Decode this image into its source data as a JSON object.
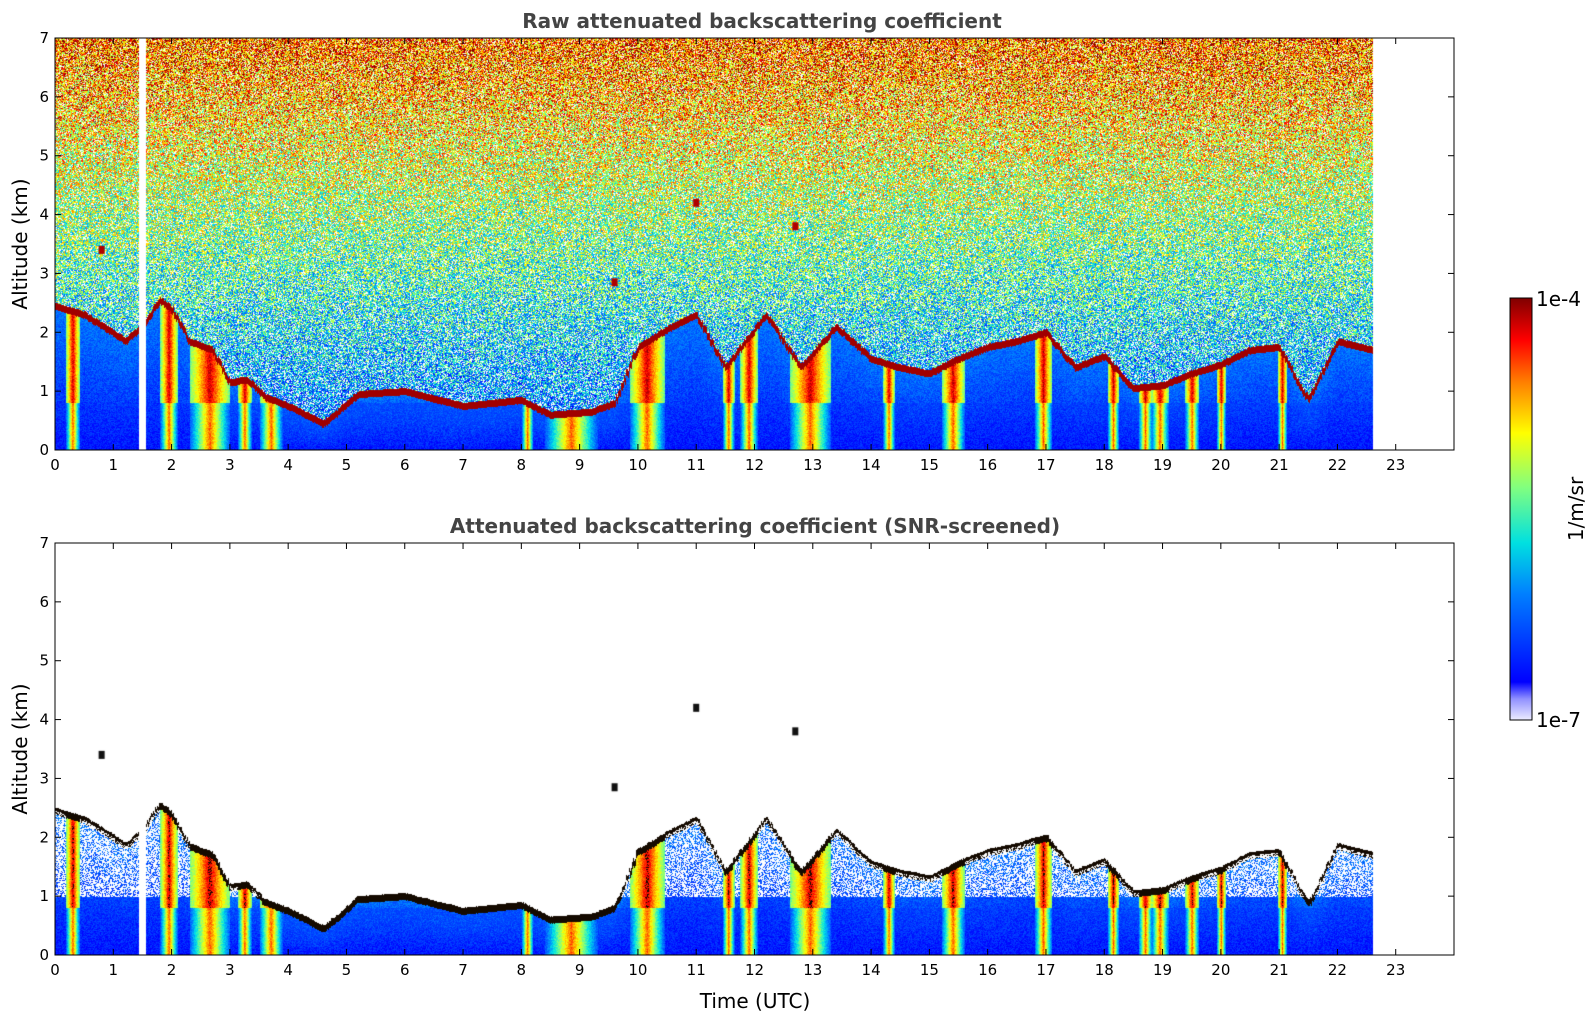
{
  "chart_data": [
    {
      "type": "heatmap",
      "title": "Raw attenuated backscattering coefficient",
      "xlabel": "",
      "ylabel": "Altitude (km)",
      "xlim": [
        0,
        24
      ],
      "ylim": [
        0,
        7
      ],
      "xticks": [
        "0",
        "1",
        "2",
        "3",
        "4",
        "5",
        "6",
        "7",
        "8",
        "9",
        "10",
        "11",
        "12",
        "13",
        "14",
        "15",
        "16",
        "17",
        "18",
        "19",
        "20",
        "21",
        "22",
        "23"
      ],
      "yticks": [
        "0",
        "1",
        "2",
        "3",
        "4",
        "5",
        "6",
        "7"
      ],
      "data_end_time": 22.6,
      "gap_time": 1.5,
      "screened": false
    },
    {
      "type": "heatmap",
      "title": "Attenuated backscattering coefficient (SNR-screened)",
      "xlabel": "Time (UTC)",
      "ylabel": "Altitude (km)",
      "xlim": [
        0,
        24
      ],
      "ylim": [
        0,
        7
      ],
      "xticks": [
        "0",
        "1",
        "2",
        "3",
        "4",
        "5",
        "6",
        "7",
        "8",
        "9",
        "10",
        "11",
        "12",
        "13",
        "14",
        "15",
        "16",
        "17",
        "18",
        "19",
        "20",
        "21",
        "22",
        "23"
      ],
      "yticks": [
        "0",
        "1",
        "2",
        "3",
        "4",
        "5",
        "6",
        "7"
      ],
      "data_end_time": 22.6,
      "gap_time": 1.5,
      "screened": true
    }
  ],
  "colorbar": {
    "label": "1/m/sr",
    "max_label": "1e-4",
    "min_label": "1e-7",
    "scale": "log",
    "range": [
      1e-07,
      0.0001
    ],
    "colormap": "jet"
  },
  "cloud_layer": [
    [
      0.0,
      2.45
    ],
    [
      0.5,
      2.3
    ],
    [
      1.0,
      2.0
    ],
    [
      1.2,
      1.85
    ],
    [
      1.5,
      2.1
    ],
    [
      1.8,
      2.55
    ],
    [
      2.0,
      2.4
    ],
    [
      2.3,
      1.85
    ],
    [
      2.7,
      1.7
    ],
    [
      3.0,
      1.15
    ],
    [
      3.3,
      1.2
    ],
    [
      3.6,
      0.9
    ],
    [
      4.0,
      0.75
    ],
    [
      4.6,
      0.45
    ],
    [
      4.8,
      0.6
    ],
    [
      5.2,
      0.95
    ],
    [
      6.0,
      1.0
    ],
    [
      7.0,
      0.75
    ],
    [
      8.0,
      0.85
    ],
    [
      8.5,
      0.6
    ],
    [
      9.2,
      0.65
    ],
    [
      9.6,
      0.8
    ],
    [
      10.0,
      1.75
    ],
    [
      10.5,
      2.05
    ],
    [
      11.0,
      2.3
    ],
    [
      11.5,
      1.4
    ],
    [
      12.2,
      2.3
    ],
    [
      12.8,
      1.4
    ],
    [
      13.4,
      2.1
    ],
    [
      14.0,
      1.55
    ],
    [
      14.5,
      1.4
    ],
    [
      15.0,
      1.3
    ],
    [
      15.5,
      1.55
    ],
    [
      16.0,
      1.75
    ],
    [
      16.5,
      1.85
    ],
    [
      17.0,
      2.0
    ],
    [
      17.5,
      1.4
    ],
    [
      18.0,
      1.6
    ],
    [
      18.5,
      1.05
    ],
    [
      19.0,
      1.1
    ],
    [
      19.5,
      1.3
    ],
    [
      20.0,
      1.45
    ],
    [
      20.5,
      1.7
    ],
    [
      21.0,
      1.75
    ],
    [
      21.5,
      0.85
    ],
    [
      22.0,
      1.85
    ],
    [
      22.6,
      1.7
    ]
  ],
  "upper_features": [
    [
      0.8,
      3.4
    ],
    [
      11.0,
      4.2
    ],
    [
      12.7,
      3.8
    ],
    [
      9.6,
      2.85
    ]
  ],
  "precip_columns": [
    [
      0.3,
      0.12
    ],
    [
      1.95,
      0.15
    ],
    [
      2.65,
      0.35
    ],
    [
      3.25,
      0.12
    ],
    [
      3.7,
      0.2
    ],
    [
      8.1,
      0.1
    ],
    [
      8.85,
      0.45
    ],
    [
      10.15,
      0.3
    ],
    [
      11.55,
      0.1
    ],
    [
      11.9,
      0.15
    ],
    [
      12.95,
      0.35
    ],
    [
      14.3,
      0.1
    ],
    [
      15.4,
      0.2
    ],
    [
      16.95,
      0.15
    ],
    [
      18.15,
      0.1
    ],
    [
      18.7,
      0.12
    ],
    [
      18.95,
      0.15
    ],
    [
      19.5,
      0.12
    ],
    [
      20.0,
      0.08
    ],
    [
      21.05,
      0.08
    ]
  ]
}
